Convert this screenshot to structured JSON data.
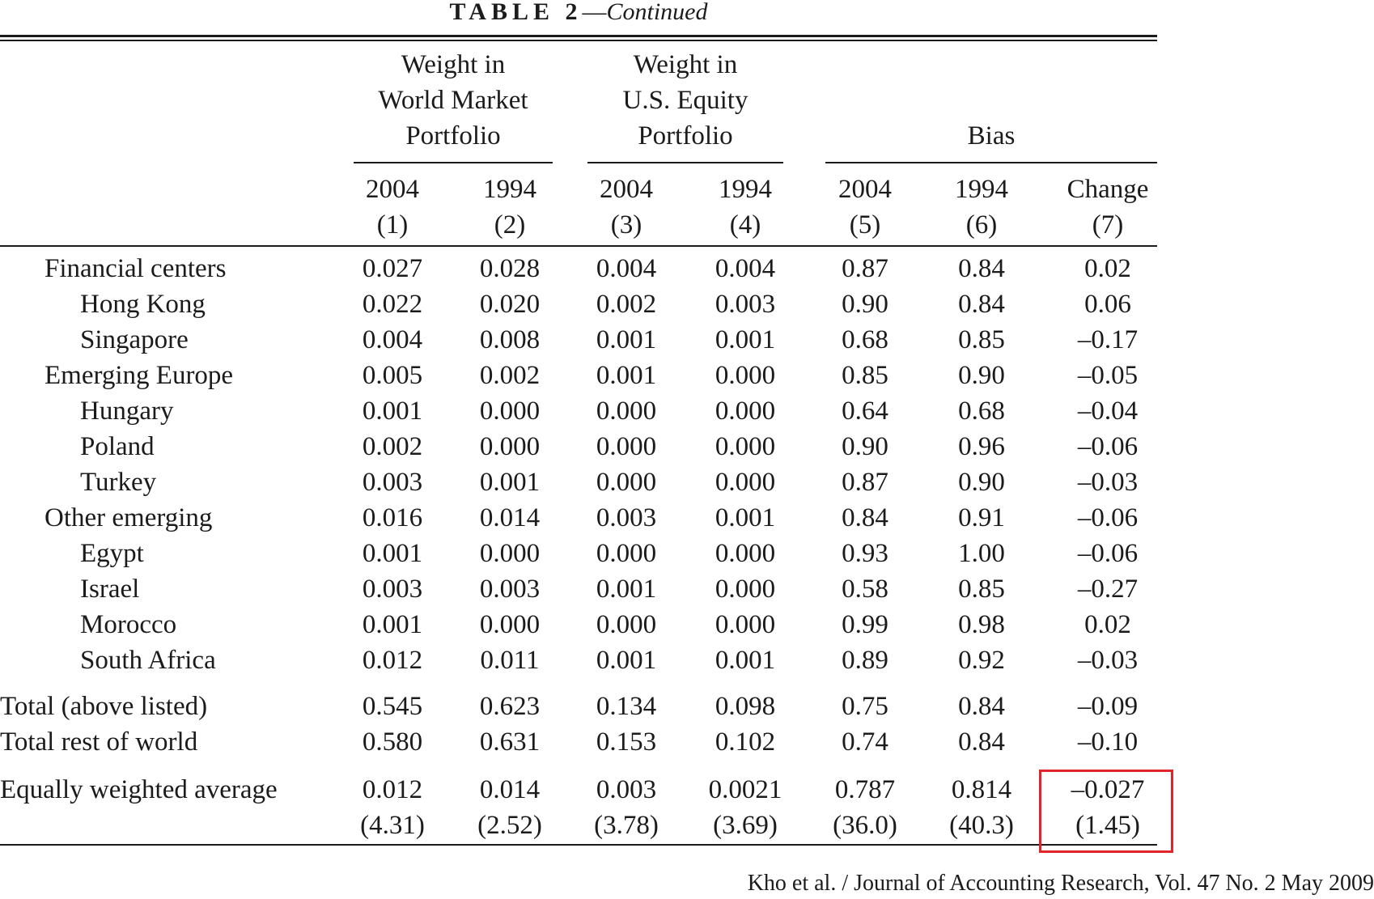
{
  "table": {
    "title_main": "TABLE 2",
    "title_sep": "—",
    "title_cont": "Continued",
    "groups": [
      {
        "label": "Weight in\nWorld Market\nPortfolio"
      },
      {
        "label": "Weight in\nU.S. Equity\nPortfolio"
      },
      {
        "label": "Bias"
      }
    ],
    "columns": [
      {
        "year": "2004",
        "num": "(1)"
      },
      {
        "year": "1994",
        "num": "(2)"
      },
      {
        "year": "2004",
        "num": "(3)"
      },
      {
        "year": "1994",
        "num": "(4)"
      },
      {
        "year": "2004",
        "num": "(5)"
      },
      {
        "year": "1994",
        "num": "(6)"
      },
      {
        "year": "Change",
        "num": "(7)"
      }
    ],
    "rows": [
      {
        "label": "Financial centers",
        "level": 1,
        "values": [
          "0.027",
          "0.028",
          "0.004",
          "0.004",
          "0.87",
          "0.84",
          "0.02"
        ]
      },
      {
        "label": "Hong Kong",
        "level": 2,
        "values": [
          "0.022",
          "0.020",
          "0.002",
          "0.003",
          "0.90",
          "0.84",
          "0.06"
        ]
      },
      {
        "label": "Singapore",
        "level": 2,
        "values": [
          "0.004",
          "0.008",
          "0.001",
          "0.001",
          "0.68",
          "0.85",
          "–0.17"
        ]
      },
      {
        "label": "Emerging Europe",
        "level": 1,
        "values": [
          "0.005",
          "0.002",
          "0.001",
          "0.000",
          "0.85",
          "0.90",
          "–0.05"
        ]
      },
      {
        "label": "Hungary",
        "level": 2,
        "values": [
          "0.001",
          "0.000",
          "0.000",
          "0.000",
          "0.64",
          "0.68",
          "–0.04"
        ]
      },
      {
        "label": "Poland",
        "level": 2,
        "values": [
          "0.002",
          "0.000",
          "0.000",
          "0.000",
          "0.90",
          "0.96",
          "–0.06"
        ]
      },
      {
        "label": "Turkey",
        "level": 2,
        "values": [
          "0.003",
          "0.001",
          "0.000",
          "0.000",
          "0.87",
          "0.90",
          "–0.03"
        ]
      },
      {
        "label": "Other emerging",
        "level": 1,
        "values": [
          "0.016",
          "0.014",
          "0.003",
          "0.001",
          "0.84",
          "0.91",
          "–0.06"
        ]
      },
      {
        "label": "Egypt",
        "level": 2,
        "values": [
          "0.001",
          "0.000",
          "0.000",
          "0.000",
          "0.93",
          "1.00",
          "–0.06"
        ]
      },
      {
        "label": "Israel",
        "level": 2,
        "values": [
          "0.003",
          "0.003",
          "0.001",
          "0.000",
          "0.58",
          "0.85",
          "–0.27"
        ]
      },
      {
        "label": "Morocco",
        "level": 2,
        "values": [
          "0.001",
          "0.000",
          "0.000",
          "0.000",
          "0.99",
          "0.98",
          "0.02"
        ]
      },
      {
        "label": "South Africa",
        "level": 2,
        "values": [
          "0.012",
          "0.011",
          "0.001",
          "0.001",
          "0.89",
          "0.92",
          "–0.03"
        ]
      },
      {
        "label": "Total (above listed)",
        "level": 0,
        "values": [
          "0.545",
          "0.623",
          "0.134",
          "0.098",
          "0.75",
          "0.84",
          "–0.09"
        ]
      },
      {
        "label": "Total rest of world",
        "level": 0,
        "values": [
          "0.580",
          "0.631",
          "0.153",
          "0.102",
          "0.74",
          "0.84",
          "–0.10"
        ]
      },
      {
        "label": "Equally weighted average",
        "level": 0,
        "values": [
          "0.012",
          "0.014",
          "0.003",
          "0.0021",
          "0.787",
          "0.814",
          "–0.027"
        ]
      },
      {
        "label": "",
        "level": 0,
        "values": [
          "(4.31)",
          "(2.52)",
          "(3.78)",
          "(3.69)",
          "(36.0)",
          "(40.3)",
          "(1.45)"
        ]
      }
    ],
    "highlight_color": "#e0262b"
  },
  "citation": "Kho et al. / Journal of Accounting Research, Vol. 47 No. 2 May 2009"
}
